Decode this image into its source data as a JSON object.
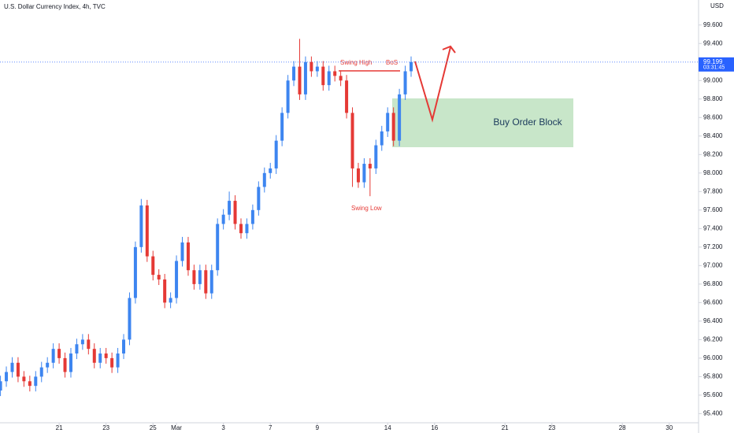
{
  "chart_data": {
    "type": "candlestick",
    "title": "U.S. Dollar Currency Index, 4h, TVC",
    "currency": "USD",
    "up_color": "#3d85f0",
    "down_color": "#e53935",
    "x": [
      -2.5,
      -2.25,
      -2.0,
      -1.75,
      -1.5,
      -1.25,
      -1.0,
      -0.75,
      -0.5,
      -0.25,
      0.0,
      0.25,
      0.5,
      0.75,
      1.0,
      1.25,
      1.5,
      1.75,
      2.0,
      2.25,
      2.5,
      2.75,
      3.0,
      3.25,
      3.5,
      3.75,
      4.0,
      4.25,
      4.5,
      4.75,
      5.0,
      5.25,
      5.5,
      5.75,
      6.0,
      6.25,
      6.5,
      6.75,
      7.0,
      7.25,
      7.5,
      7.75,
      8.0,
      8.25,
      8.5,
      8.75,
      9.0,
      9.25,
      9.5,
      9.75,
      10.0,
      10.25,
      10.5,
      10.75,
      11.0,
      11.25,
      11.5,
      11.75,
      12.0,
      12.25,
      12.5,
      12.75,
      13.0,
      13.25,
      13.5,
      13.75,
      14.0,
      14.25,
      14.5,
      14.75,
      15.0
    ],
    "open": [
      95.65,
      95.75,
      95.85,
      95.95,
      95.8,
      95.75,
      95.7,
      95.8,
      95.9,
      95.95,
      96.1,
      96.0,
      95.85,
      96.05,
      96.15,
      96.2,
      96.1,
      95.95,
      96.05,
      96.0,
      95.9,
      96.05,
      96.2,
      96.65,
      97.2,
      97.65,
      97.1,
      96.9,
      96.85,
      96.6,
      96.65,
      97.05,
      97.25,
      96.95,
      96.8,
      96.95,
      96.7,
      96.95,
      97.45,
      97.55,
      97.7,
      97.45,
      97.35,
      97.45,
      97.6,
      97.85,
      98.0,
      98.05,
      98.35,
      98.65,
      99.0,
      99.15,
      98.85,
      99.2,
      99.1,
      99.15,
      98.95,
      99.1,
      99.05,
      99.0,
      98.65,
      98.05,
      97.9,
      98.1,
      98.05,
      98.3,
      98.45,
      98.65,
      98.35,
      98.85,
      99.1
    ],
    "high": [
      95.81,
      95.91,
      96.01,
      96.01,
      95.86,
      95.81,
      95.86,
      95.96,
      96.01,
      96.16,
      96.16,
      96.06,
      96.11,
      96.21,
      96.26,
      96.26,
      96.16,
      96.11,
      96.11,
      96.06,
      96.11,
      96.26,
      96.71,
      97.26,
      97.72,
      97.71,
      97.16,
      96.96,
      96.91,
      96.71,
      97.11,
      97.31,
      97.31,
      97.01,
      97.01,
      97.01,
      97.01,
      97.51,
      97.61,
      97.8,
      97.76,
      97.51,
      97.51,
      97.66,
      97.91,
      98.06,
      98.11,
      98.41,
      98.71,
      99.06,
      99.21,
      99.45,
      99.26,
      99.26,
      99.21,
      99.21,
      99.16,
      99.16,
      99.11,
      99.06,
      98.71,
      98.11,
      98.16,
      98.16,
      98.36,
      98.51,
      98.71,
      98.71,
      98.91,
      99.16,
      99.26
    ],
    "low": [
      95.59,
      95.69,
      95.79,
      95.74,
      95.69,
      95.64,
      95.64,
      95.74,
      95.84,
      95.89,
      95.94,
      95.79,
      95.79,
      95.99,
      96.09,
      96.04,
      95.89,
      95.89,
      95.94,
      95.84,
      95.84,
      95.99,
      96.14,
      96.59,
      97.14,
      97.04,
      96.84,
      96.79,
      96.54,
      96.54,
      96.59,
      96.99,
      96.89,
      96.74,
      96.74,
      96.64,
      96.64,
      96.89,
      97.39,
      97.49,
      97.39,
      97.29,
      97.29,
      97.39,
      97.54,
      97.79,
      97.94,
      97.99,
      98.29,
      98.59,
      98.94,
      98.79,
      98.79,
      99.04,
      99.04,
      98.89,
      98.89,
      98.99,
      98.94,
      98.59,
      97.85,
      97.84,
      97.84,
      97.75,
      97.99,
      98.24,
      98.39,
      98.29,
      98.29,
      98.79,
      99.04
    ],
    "close": [
      95.75,
      95.85,
      95.95,
      95.8,
      95.75,
      95.7,
      95.8,
      95.9,
      95.95,
      96.1,
      96.0,
      95.85,
      96.05,
      96.15,
      96.2,
      96.1,
      95.95,
      96.05,
      96.0,
      95.9,
      96.05,
      96.2,
      96.65,
      97.2,
      97.65,
      97.1,
      96.9,
      96.85,
      96.6,
      96.65,
      97.05,
      97.25,
      96.95,
      96.8,
      96.95,
      96.7,
      96.95,
      97.45,
      97.55,
      97.7,
      97.45,
      97.35,
      97.45,
      97.6,
      97.85,
      98.0,
      98.05,
      98.35,
      98.65,
      99.0,
      99.15,
      98.85,
      99.2,
      99.1,
      99.15,
      98.95,
      99.1,
      99.05,
      99.0,
      98.65,
      98.05,
      97.9,
      98.1,
      98.05,
      98.3,
      98.45,
      98.65,
      98.35,
      98.85,
      99.1,
      99.2
    ],
    "xlim": [
      -2.52,
      27.25
    ],
    "xticks": [
      {
        "value": 0,
        "label": "21"
      },
      {
        "value": 2,
        "label": "23"
      },
      {
        "value": 4,
        "label": "25"
      },
      {
        "value": 5,
        "label": "Mar"
      },
      {
        "value": 7,
        "label": "3"
      },
      {
        "value": 9,
        "label": "7"
      },
      {
        "value": 11,
        "label": "9"
      },
      {
        "value": 14,
        "label": "14"
      },
      {
        "value": 16,
        "label": "16"
      },
      {
        "value": 19,
        "label": "21"
      },
      {
        "value": 21,
        "label": "23"
      },
      {
        "value": 24,
        "label": "28"
      },
      {
        "value": 26,
        "label": "30"
      }
    ],
    "ylim": [
      95.31,
      99.87
    ],
    "yticks": [
      {
        "value": 95.4,
        "label": "95.400"
      },
      {
        "value": 95.6,
        "label": "95.600"
      },
      {
        "value": 95.8,
        "label": "95.800"
      },
      {
        "value": 96.0,
        "label": "96.000"
      },
      {
        "value": 96.2,
        "label": "96.200"
      },
      {
        "value": 96.4,
        "label": "96.400"
      },
      {
        "value": 96.6,
        "label": "96.600"
      },
      {
        "value": 96.8,
        "label": "96.800"
      },
      {
        "value": 97.0,
        "label": "97.000"
      },
      {
        "value": 97.2,
        "label": "97.200"
      },
      {
        "value": 97.4,
        "label": "97.400"
      },
      {
        "value": 97.6,
        "label": "97.600"
      },
      {
        "value": 97.8,
        "label": "97.800"
      },
      {
        "value": 98.0,
        "label": "98.000"
      },
      {
        "value": 98.2,
        "label": "98.200"
      },
      {
        "value": 98.4,
        "label": "98.400"
      },
      {
        "value": 98.6,
        "label": "98.600"
      },
      {
        "value": 98.8,
        "label": "98.800"
      },
      {
        "value": 99.0,
        "label": "99.000"
      },
      {
        "value": 99.4,
        "label": "99.400"
      },
      {
        "value": 99.6,
        "label": "99.600"
      }
    ],
    "last_price": {
      "value": 99.199,
      "label": "99.199"
    },
    "countdown": "03:31:45",
    "annotations": {
      "swing_high": "Swing High",
      "bos": "BoS",
      "swing_low": "Swing Low",
      "order_block": "Buy Order Block"
    }
  }
}
